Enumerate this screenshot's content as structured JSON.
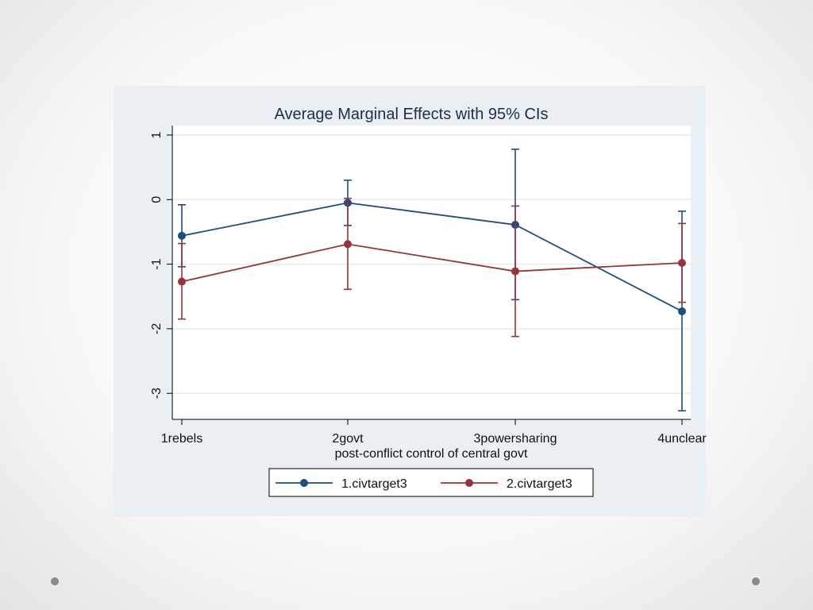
{
  "chart_data": {
    "type": "line",
    "title": "Average Marginal Effects with 95% CIs",
    "xlabel": "post-conflict control of central govt",
    "ylabel": "",
    "categories": [
      "1rebels",
      "2govt",
      "3powersharing",
      "4unclear"
    ],
    "yticks": [
      "1",
      "0",
      "-1",
      "-2",
      "-3"
    ],
    "ylim": [
      -3.4,
      1.15
    ],
    "grid": true,
    "legend_placement": "bottom",
    "series": [
      {
        "name": "1.civtarget3",
        "color": "#1f4e79",
        "values": [
          -0.56,
          -0.05,
          -0.39,
          -1.73
        ],
        "ci_low": [
          -1.04,
          -0.4,
          -1.55,
          -3.27
        ],
        "ci_high": [
          -0.08,
          0.3,
          0.78,
          -0.18
        ]
      },
      {
        "name": "2.civtarget3",
        "color": "#94353a",
        "values": [
          -1.27,
          -0.69,
          -1.11,
          -0.98
        ],
        "ci_low": [
          -1.85,
          -1.39,
          -2.12,
          -1.59
        ],
        "ci_high": [
          -0.68,
          0.02,
          -0.1,
          -0.37
        ]
      }
    ]
  }
}
